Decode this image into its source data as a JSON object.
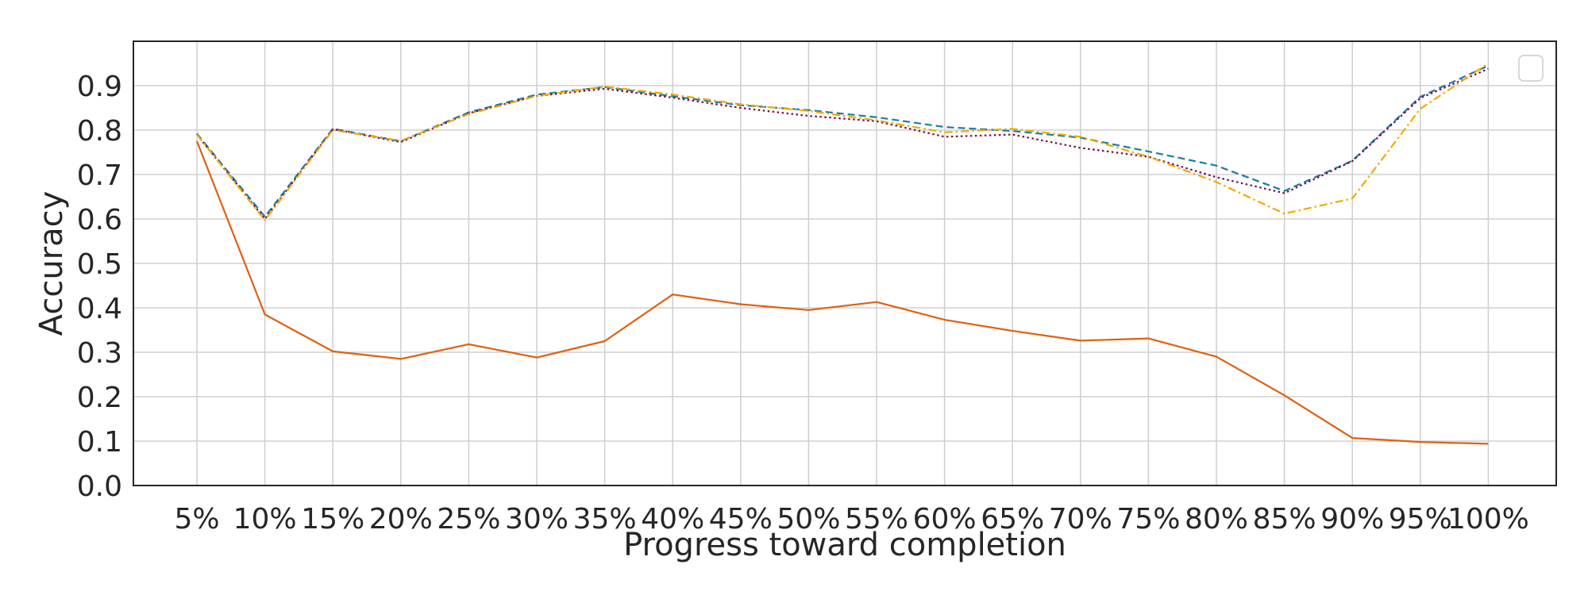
{
  "chart_data": {
    "type": "line",
    "xlabel": "Progress toward completion",
    "ylabel": "Accuracy",
    "categories": [
      "5%",
      "10%",
      "15%",
      "20%",
      "25%",
      "30%",
      "35%",
      "40%",
      "45%",
      "50%",
      "55%",
      "60%",
      "65%",
      "70%",
      "75%",
      "80%",
      "85%",
      "90%",
      "95%",
      "100%"
    ],
    "ylim": [
      0,
      1.0
    ],
    "yticks": [
      "0.0",
      "0.1",
      "0.2",
      "0.3",
      "0.4",
      "0.5",
      "0.6",
      "0.7",
      "0.8",
      "0.9"
    ],
    "grid": true,
    "legend": "top-right (empty)",
    "series": [
      {
        "color": "#e06010",
        "style": "solid",
        "values": [
          0.775,
          0.385,
          0.302,
          0.285,
          0.318,
          0.288,
          0.325,
          0.43,
          0.408,
          0.395,
          0.413,
          0.373,
          0.348,
          0.326,
          0.331,
          0.29,
          0.203,
          0.107,
          0.098,
          0.094
        ]
      },
      {
        "color": "#1a7ea0",
        "style": "dashed",
        "values": [
          0.792,
          0.605,
          0.803,
          0.775,
          0.84,
          0.88,
          0.897,
          0.876,
          0.856,
          0.845,
          0.829,
          0.807,
          0.798,
          0.783,
          0.752,
          0.72,
          0.663,
          0.731,
          0.875,
          0.945
        ]
      },
      {
        "color": "#7a0a50",
        "style": "dotted",
        "values": [
          0.79,
          0.6,
          0.802,
          0.773,
          0.838,
          0.877,
          0.893,
          0.873,
          0.85,
          0.832,
          0.82,
          0.785,
          0.79,
          0.76,
          0.74,
          0.694,
          0.658,
          0.73,
          0.872,
          0.938
        ]
      },
      {
        "color": "#f2a900",
        "style": "dashdot",
        "values": [
          0.79,
          0.597,
          0.8,
          0.776,
          0.836,
          0.877,
          0.898,
          0.88,
          0.858,
          0.843,
          0.822,
          0.795,
          0.803,
          0.785,
          0.74,
          0.683,
          0.612,
          0.646,
          0.848,
          0.95
        ]
      }
    ]
  }
}
